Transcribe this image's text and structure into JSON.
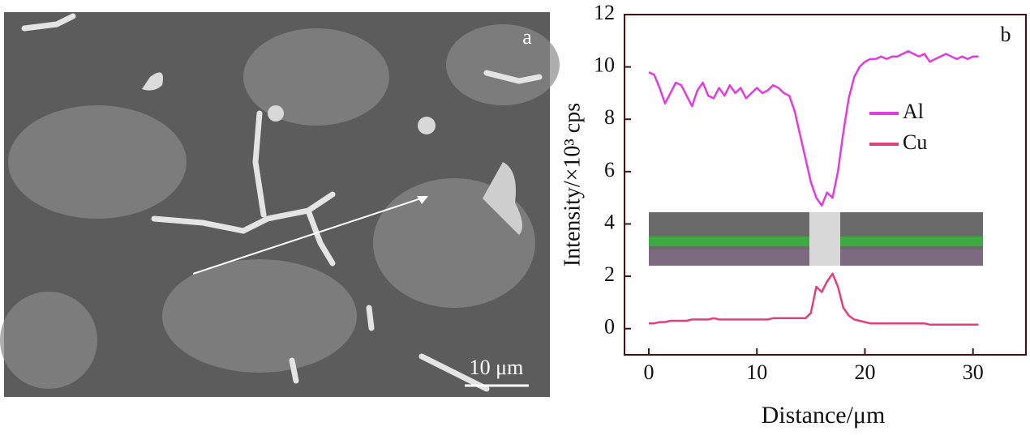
{
  "image": {
    "label": "a",
    "scale_bar": "10 μm"
  },
  "chart_data": {
    "type": "line",
    "panel_label": "b",
    "x_label": "Distance/μm",
    "y_label": "Intensity/×10³ cps",
    "x": [
      0,
      0.5,
      1,
      1.5,
      2,
      2.5,
      3,
      3.5,
      4,
      4.5,
      5,
      5.5,
      6,
      6.5,
      7,
      7.5,
      8,
      8.5,
      9,
      9.5,
      10,
      10.5,
      11,
      11.5,
      12,
      12.5,
      13,
      13.5,
      14,
      14.5,
      15,
      15.5,
      16,
      16.5,
      17,
      17.5,
      18,
      18.5,
      19,
      19.5,
      20,
      20.5,
      21,
      21.5,
      22,
      22.5,
      23,
      23.5,
      24,
      24.5,
      25,
      25.5,
      26,
      26.5,
      27,
      27.5,
      28,
      28.5,
      29,
      29.5,
      30,
      30.5
    ],
    "series": [
      {
        "name": "Al",
        "color": "#e23ce0",
        "values": [
          9.8,
          9.7,
          9.2,
          8.6,
          9.0,
          9.4,
          9.3,
          8.9,
          8.5,
          9.1,
          9.4,
          8.9,
          8.8,
          9.2,
          8.9,
          9.3,
          9.0,
          9.2,
          8.8,
          9.0,
          9.2,
          9.0,
          9.1,
          9.3,
          9.2,
          9.0,
          8.9,
          8.3,
          7.4,
          6.5,
          5.6,
          5.0,
          4.7,
          5.2,
          5.0,
          6.0,
          7.5,
          8.8,
          9.6,
          10.0,
          10.2,
          10.3,
          10.3,
          10.4,
          10.3,
          10.4,
          10.4,
          10.5,
          10.6,
          10.5,
          10.4,
          10.5,
          10.2,
          10.3,
          10.4,
          10.5,
          10.4,
          10.3,
          10.4,
          10.3,
          10.4,
          10.4
        ]
      },
      {
        "name": "Cu",
        "color": "#e2407c",
        "values": [
          0.2,
          0.2,
          0.25,
          0.25,
          0.3,
          0.3,
          0.3,
          0.3,
          0.35,
          0.35,
          0.35,
          0.35,
          0.4,
          0.35,
          0.35,
          0.35,
          0.35,
          0.35,
          0.35,
          0.35,
          0.35,
          0.35,
          0.35,
          0.4,
          0.4,
          0.4,
          0.4,
          0.4,
          0.4,
          0.4,
          0.6,
          1.6,
          1.4,
          1.8,
          2.1,
          1.6,
          0.8,
          0.5,
          0.35,
          0.3,
          0.25,
          0.2,
          0.2,
          0.2,
          0.2,
          0.2,
          0.2,
          0.2,
          0.2,
          0.2,
          0.2,
          0.2,
          0.15,
          0.15,
          0.15,
          0.15,
          0.15,
          0.15,
          0.15,
          0.15,
          0.15,
          0.15
        ]
      }
    ],
    "xlim": [
      -2.25,
      34.9
    ],
    "ylim": [
      -1,
      12
    ],
    "xticks": [
      0,
      10,
      20,
      30
    ],
    "yticks": [
      0,
      2,
      4,
      6,
      8,
      10,
      12
    ]
  }
}
